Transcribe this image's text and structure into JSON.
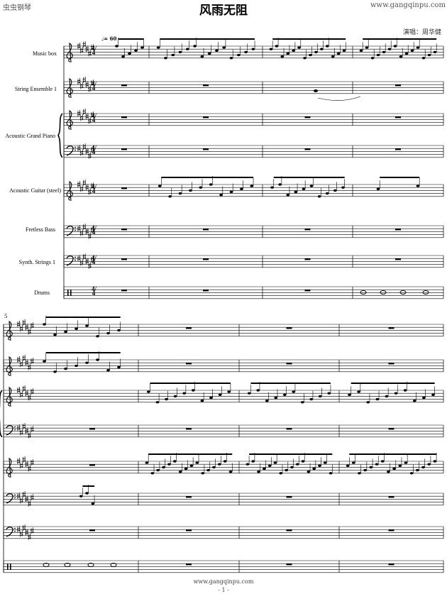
{
  "header": {
    "site_name": "虫虫钢琴",
    "site_url": "www.gangqinpu.com",
    "title": "风雨无阻",
    "singer": "演唱：周华健"
  },
  "tempo": {
    "marking": "♩= 60"
  },
  "system1": {
    "instruments": [
      {
        "label": "Music box",
        "clef": "treble"
      },
      {
        "label": "String Ensemble 1",
        "clef": "treble"
      },
      {
        "label": "Acoustic Grand Piano",
        "clef": "treble+bass"
      },
      {
        "label": "Acoustic Guitar (steel)",
        "clef": "treble"
      },
      {
        "label": "Fretless Bass",
        "clef": "bass"
      },
      {
        "label": "Synth. Strings 1",
        "clef": "bass"
      },
      {
        "label": "Drums",
        "clef": "percussion"
      }
    ],
    "time_signature": "4/4",
    "key_signature": "6 sharps"
  },
  "system2": {
    "measure_number": "5"
  },
  "footer": {
    "url": "www.gangqinpu.com",
    "page": "- 1 -"
  }
}
